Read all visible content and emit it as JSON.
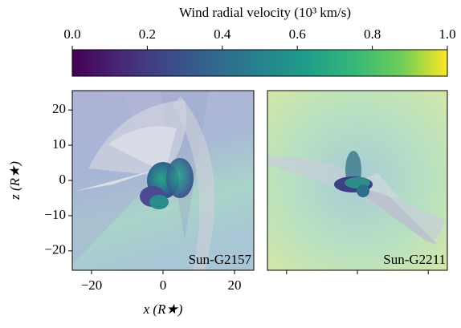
{
  "chart_data": [
    {
      "type": "colorbar",
      "title": "Wind radial velocity (10³ km/s)",
      "xlim": [
        0,
        1
      ],
      "xticks": [
        {
          "value": 0,
          "label": "0.0"
        },
        0.2,
        0.4,
        0.6,
        0.8,
        {
          "value": 1,
          "label": "1.0"
        }
      ]
    },
    {
      "type": "image",
      "label": "Sun-G2157",
      "xlabel": "x (R★)",
      "ylabel": "z (R★)",
      "xlim": [
        -25.4,
        25.4
      ],
      "ylim": [
        -25.5,
        25.5
      ],
      "xticks": [
        {
          "value": -20,
          "label": "−20"
        },
        0,
        20
      ],
      "yticks": [
        {
          "value": -20,
          "label": "−20"
        },
        {
          "value": -10,
          "label": "−10"
        },
        0,
        10,
        20
      ]
    },
    {
      "type": "image",
      "label": "Sun-G2211",
      "xlim": [
        -25.4,
        25.4
      ],
      "ylim": [
        -25.5,
        25.5
      ],
      "xticks": [
        -20,
        0,
        20
      ],
      "xtick_labels": false
    }
  ]
}
